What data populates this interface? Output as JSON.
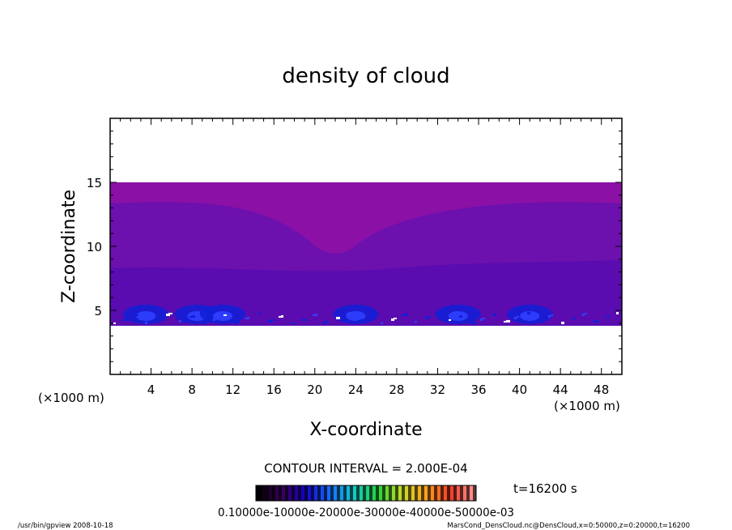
{
  "chart_data": {
    "type": "heatmap",
    "title": "density of cloud",
    "xlabel": "X-coordinate",
    "ylabel": "Z-coordinate",
    "x_unit_left": "(×1000 m)",
    "x_unit_right": "(×1000 m)",
    "xlim": [
      0,
      50000
    ],
    "ylim": [
      0,
      20000
    ],
    "xticks": [
      "4",
      "8",
      "12",
      "16",
      "20",
      "24",
      "28",
      "32",
      "36",
      "40",
      "44",
      "48"
    ],
    "yticks": [
      "5",
      "10",
      "15"
    ],
    "cloud_layer": {
      "z_bottom": 3800,
      "z_top": 15000,
      "dip_center_x": 22000,
      "dip_bottom_z": 9300,
      "dense_cores_x": [
        3500,
        8500,
        11000,
        24000,
        34000,
        41000
      ]
    },
    "colors": {
      "upper": "#8a10a6",
      "middle": "#6c10ae",
      "lower": "#5a0cb0",
      "dense": "#1020d8",
      "core": "#3040ff"
    },
    "contour_interval": "CONTOUR INTERVAL = 2.000E-04",
    "time_label": "t=16200  s",
    "colorbar_labels": "0.10000e-10000e-20000e-30000e-40000e-50000e-03",
    "footer_left": "/usr/bin/gpview   2008-10-18",
    "footer_right": "MarsCond_DensCloud.nc@DensCloud,x=0:50000,z=0:20000,t=16200"
  }
}
